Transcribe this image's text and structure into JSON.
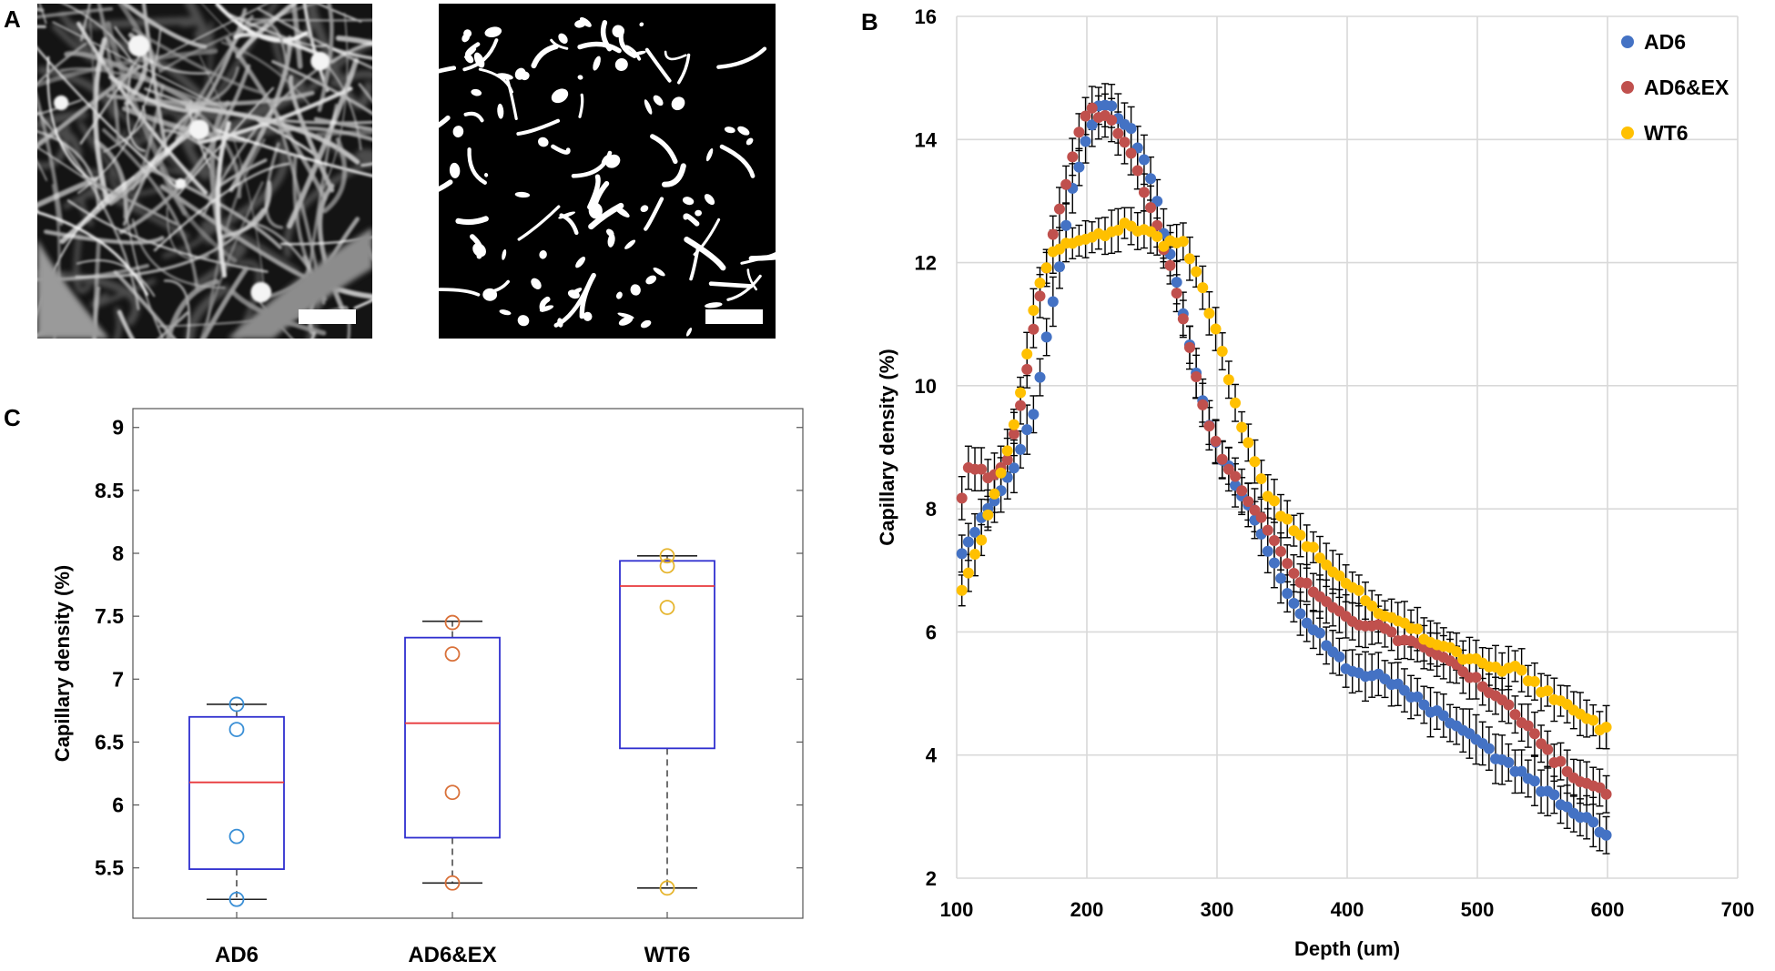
{
  "panels": {
    "a": "A",
    "b": "B",
    "c": "C"
  },
  "chart_data": [
    {
      "id": "panel-b",
      "type": "scatter",
      "title": "",
      "xlabel": "Depth (um)",
      "ylabel": "Capillary density (%)",
      "xlim": [
        100,
        700
      ],
      "ylim": [
        2,
        16
      ],
      "xticks": [
        100,
        200,
        300,
        400,
        500,
        600,
        700
      ],
      "yticks": [
        2,
        4,
        6,
        8,
        10,
        12,
        14,
        16
      ],
      "grid": true,
      "legend_position": "top-right",
      "x_range": [
        104,
        600
      ],
      "x_step": 5,
      "error_bars": true,
      "series": [
        {
          "name": "AD6",
          "color": "#4472C4",
          "knots_x": [
            104,
            120,
            140,
            160,
            175,
            190,
            200,
            210,
            220,
            235,
            250,
            265,
            280,
            290,
            300,
            320,
            340,
            360,
            380,
            400,
            420,
            440,
            460,
            480,
            500,
            520,
            540,
            560,
            580,
            600
          ],
          "knots_y": [
            7.3,
            7.9,
            8.5,
            9.6,
            11.5,
            13.3,
            14.0,
            14.6,
            14.5,
            14.1,
            13.3,
            12.0,
            10.6,
            9.6,
            9.0,
            8.2,
            7.3,
            6.4,
            5.9,
            5.4,
            5.3,
            5.1,
            4.8,
            4.5,
            4.2,
            3.9,
            3.6,
            3.3,
            3.0,
            2.7
          ],
          "err": [
            0.35,
            0.3,
            0.35,
            0.4
          ]
        },
        {
          "name": "AD6&EX",
          "color": "#C0504D",
          "knots_x": [
            104,
            110,
            120,
            130,
            140,
            150,
            160,
            175,
            190,
            200,
            210,
            220,
            235,
            250,
            265,
            280,
            290,
            300,
            320,
            340,
            360,
            380,
            400,
            420,
            440,
            460,
            480,
            500,
            520,
            540,
            560,
            580,
            600
          ],
          "knots_y": [
            8.2,
            8.7,
            8.6,
            8.5,
            8.8,
            9.8,
            11.0,
            12.6,
            13.8,
            14.5,
            14.4,
            14.3,
            13.7,
            12.8,
            11.9,
            10.5,
            9.6,
            9.0,
            8.3,
            7.6,
            6.9,
            6.6,
            6.2,
            6.1,
            5.9,
            5.7,
            5.5,
            5.2,
            4.9,
            4.4,
            3.9,
            3.6,
            3.4
          ],
          "err": [
            0.35,
            0.3,
            0.3,
            0.35
          ]
        },
        {
          "name": "WT6",
          "color": "#FFC000",
          "knots_x": [
            104,
            110,
            120,
            130,
            140,
            150,
            160,
            170,
            180,
            200,
            215,
            230,
            245,
            260,
            275,
            285,
            300,
            320,
            340,
            360,
            380,
            400,
            420,
            440,
            460,
            480,
            500,
            520,
            530,
            540,
            560,
            580,
            600
          ],
          "knots_y": [
            6.7,
            7.0,
            7.6,
            8.3,
            9.0,
            10.0,
            11.4,
            12.0,
            12.3,
            12.4,
            12.5,
            12.6,
            12.5,
            12.3,
            12.3,
            11.8,
            10.8,
            9.3,
            8.2,
            7.6,
            7.2,
            6.8,
            6.4,
            6.2,
            5.9,
            5.7,
            5.5,
            5.4,
            5.45,
            5.2,
            4.9,
            4.6,
            4.4
          ],
          "err": [
            0.3,
            0.25,
            0.3,
            0.35
          ]
        }
      ]
    },
    {
      "id": "panel-c",
      "type": "boxplot",
      "ylabel": "Capillary density (%)",
      "ylim": [
        5.1,
        9.15
      ],
      "yticks": [
        5.5,
        6,
        6.5,
        7,
        7.5,
        8,
        8.5,
        9
      ],
      "ytick_labels": [
        "5.5",
        "6",
        "6.5",
        "7",
        "7.5",
        "8",
        "8.5",
        "9"
      ],
      "categories": [
        "AD6",
        "AD6&EX",
        "WT6"
      ],
      "box_color": "#2F2FCF",
      "median_color": "#E8383B",
      "boxes": [
        {
          "name": "AD6",
          "q1": 5.49,
          "median": 6.18,
          "q3": 6.7,
          "whisker_low": 5.25,
          "whisker_high": 6.8,
          "points": [
            6.8,
            6.6,
            5.75,
            5.25
          ],
          "point_color": "#3A8FD6"
        },
        {
          "name": "AD6&EX",
          "q1": 5.74,
          "median": 6.65,
          "q3": 7.33,
          "whisker_low": 5.38,
          "whisker_high": 7.46,
          "points": [
            7.45,
            7.2,
            6.1,
            5.38
          ],
          "point_color": "#D9713A"
        },
        {
          "name": "WT6",
          "q1": 6.45,
          "median": 7.74,
          "q3": 7.94,
          "whisker_low": 5.34,
          "whisker_high": 7.98,
          "points": [
            7.98,
            7.9,
            7.57,
            5.34
          ],
          "point_color": "#E6B52E"
        }
      ]
    }
  ]
}
